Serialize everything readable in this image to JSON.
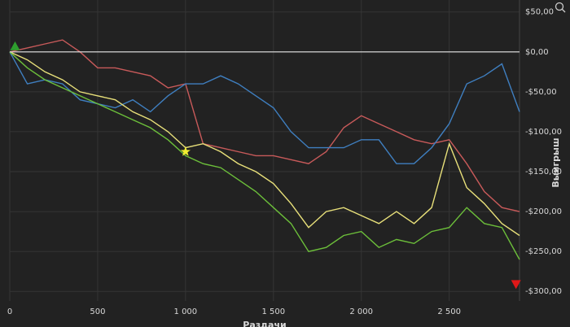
{
  "chart_data": {
    "type": "line",
    "x_label": "Раздачи",
    "y_label": "Выигрыш",
    "x": [
      0,
      100,
      200,
      300,
      400,
      500,
      600,
      700,
      800,
      900,
      1000,
      1100,
      1200,
      1300,
      1400,
      1500,
      1600,
      1700,
      1800,
      1900,
      2000,
      2100,
      2200,
      2300,
      2400,
      2500,
      2600,
      2700,
      2800,
      2900
    ],
    "series": [
      {
        "color": "#c85a5a",
        "values": [
          0,
          5,
          10,
          15,
          0,
          -20,
          -20,
          -25,
          -30,
          -45,
          -40,
          -115,
          -120,
          -125,
          -130,
          -130,
          -135,
          -140,
          -125,
          -95,
          -80,
          -90,
          -100,
          -110,
          -115,
          -110,
          -140,
          -175,
          -195,
          -200
        ]
      },
      {
        "color": "#3f7fc0",
        "values": [
          0,
          -40,
          -35,
          -40,
          -60,
          -65,
          -70,
          -60,
          -75,
          -55,
          -40,
          -40,
          -30,
          -40,
          -55,
          -70,
          -100,
          -120,
          -120,
          -120,
          -110,
          -110,
          -140,
          -140,
          -120,
          -90,
          -40,
          -30,
          -15,
          -75
        ]
      },
      {
        "color": "#e8e07a",
        "values": [
          0,
          -10,
          -25,
          -35,
          -50,
          -55,
          -60,
          -75,
          -85,
          -100,
          -120,
          -115,
          -125,
          -140,
          -150,
          -165,
          -190,
          -220,
          -200,
          -195,
          -205,
          -215,
          -200,
          -215,
          -195,
          -115,
          -170,
          -190,
          -215,
          -230
        ]
      },
      {
        "color": "#6cbf3a",
        "values": [
          0,
          -20,
          -35,
          -45,
          -55,
          -65,
          -75,
          -85,
          -95,
          -110,
          -130,
          -140,
          -145,
          -160,
          -175,
          -195,
          -215,
          -250,
          -245,
          -230,
          -225,
          -245,
          -235,
          -240,
          -225,
          -220,
          -195,
          -215,
          -220,
          -260
        ]
      }
    ],
    "hline": 0,
    "markers": [
      {
        "shape": "triangle-up",
        "color": "#2e9e2e",
        "x": 30,
        "y": 6
      },
      {
        "shape": "star",
        "color": "#f2ee30",
        "x": 1000,
        "y": -125
      },
      {
        "shape": "triangle-down",
        "color": "#e01818",
        "x": 2880,
        "y": -290
      }
    ],
    "xlim": [
      0,
      2900
    ],
    "ylim": [
      -312,
      65
    ],
    "xticks": [
      0,
      500,
      {
        "value": 1000,
        "label": "1 000"
      },
      {
        "value": 1500,
        "label": "1 500"
      },
      {
        "value": 2000,
        "label": "2 000"
      },
      {
        "value": 2500,
        "label": "2 500"
      }
    ],
    "yticks": [
      {
        "value": 50,
        "label": "$50,00"
      },
      {
        "value": 0,
        "label": "$0,00"
      },
      {
        "value": -50,
        "label": "-$50,00"
      },
      {
        "value": -100,
        "label": "-$100,00"
      },
      {
        "value": -150,
        "label": "-$150,00"
      },
      {
        "value": -200,
        "label": "-$200,00"
      },
      {
        "value": -250,
        "label": "-$250,00"
      },
      {
        "value": -300,
        "label": "-$300,00"
      }
    ],
    "grid": true
  }
}
